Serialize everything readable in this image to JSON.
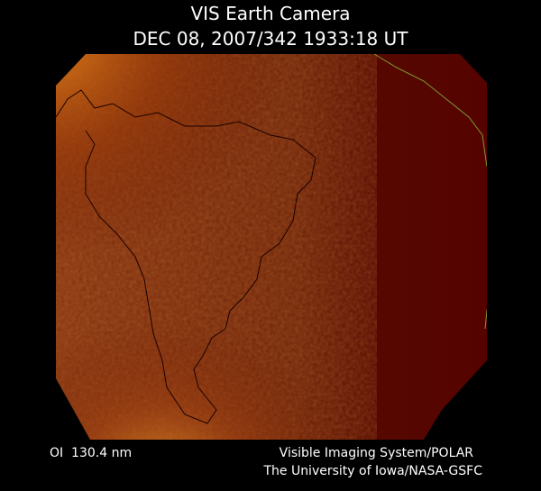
{
  "header": {
    "title": "VIS Earth Camera",
    "timestamp": "DEC 08, 2007/342 1933:18 UT"
  },
  "footer": {
    "wavelength": "OI  130.4 nm",
    "instrument": "Visible Imaging System/POLAR",
    "credit": "The University of Iowa/NASA-GSFC"
  }
}
